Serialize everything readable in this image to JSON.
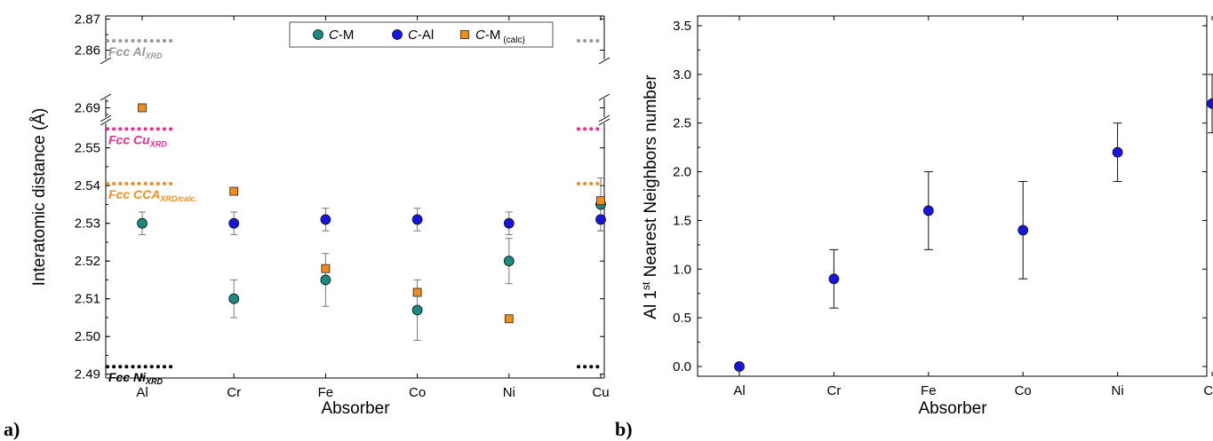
{
  "panel_a_label": "a)",
  "panel_b_label": "b)",
  "chart_data": [
    {
      "type": "scatter",
      "xlabel": "Absorber",
      "ylabel": "Interatomic distance (Å)",
      "categories": [
        "Al",
        "Cr",
        "Fe",
        "Co",
        "Ni",
        "Cu"
      ],
      "y_segments": [
        {
          "range": [
            2.489,
            2.5565
          ],
          "ticks": [
            "2.49",
            "2.50",
            "2.51",
            "2.52",
            "2.53",
            "2.54",
            "2.55"
          ]
        },
        {
          "range": [
            2.683,
            2.697
          ],
          "ticks": [
            "2.69"
          ]
        },
        {
          "range": [
            2.857,
            2.871
          ],
          "ticks": [
            "2.86",
            "2.87"
          ]
        }
      ],
      "legend": {
        "items": [
          {
            "prefix": "C",
            "suffix": "-M",
            "sub": "",
            "marker": "circle",
            "color": "#1a8a80"
          },
          {
            "prefix": "C",
            "suffix": "-Al",
            "sub": "",
            "marker": "circle",
            "color": "#1515e0"
          },
          {
            "prefix": "C",
            "suffix": "-M",
            "sub": "(calc)",
            "marker": "square",
            "color": "#f28c1c"
          }
        ]
      },
      "series": [
        {
          "name": "C-M",
          "marker": "circle",
          "color": "#1a8a80",
          "points": [
            {
              "x": "Al",
              "y": 2.53,
              "err": 0.003
            },
            {
              "x": "Cr",
              "y": 2.51,
              "err": 0.005
            },
            {
              "x": "Fe",
              "y": 2.515,
              "err": 0.007
            },
            {
              "x": "Co",
              "y": 2.507,
              "err": 0.008
            },
            {
              "x": "Ni",
              "y": 2.52,
              "err": 0.006
            },
            {
              "x": "Cu",
              "y": 2.535,
              "err": 0.007
            }
          ]
        },
        {
          "name": "C-Al",
          "marker": "circle",
          "color": "#1515e0",
          "points": [
            {
              "x": "Cr",
              "y": 2.53,
              "err": 0.003
            },
            {
              "x": "Fe",
              "y": 2.531,
              "err": 0.003
            },
            {
              "x": "Co",
              "y": 2.531,
              "err": 0.003
            },
            {
              "x": "Ni",
              "y": 2.53,
              "err": 0.003
            },
            {
              "x": "Cu",
              "y": 2.531,
              "err": 0.003
            }
          ]
        },
        {
          "name": "C-M (calc)",
          "marker": "square",
          "color": "#f28c1c",
          "points": [
            {
              "x": "Al",
              "y": 2.69
            },
            {
              "x": "Cr",
              "y": 2.5385
            },
            {
              "x": "Fe",
              "y": 2.518
            },
            {
              "x": "Co",
              "y": 2.5117
            },
            {
              "x": "Ni",
              "y": 2.5047
            },
            {
              "x": "Cu",
              "y": 2.536
            }
          ]
        }
      ],
      "reference_lines": [
        {
          "label": "Fcc Al",
          "sub": "XRD",
          "y": 2.863,
          "color": "#999999"
        },
        {
          "label": "Fcc Cu",
          "sub": "XRD",
          "y": 2.555,
          "color": "#ee2a8c"
        },
        {
          "label": "Fcc CCA",
          "sub": "XRD/calc.",
          "y": 2.5405,
          "color": "#f28c1c"
        },
        {
          "label": "Fcc Ni",
          "sub": "XRD",
          "y": 2.492,
          "color": "#000000"
        }
      ]
    },
    {
      "type": "scatter",
      "xlabel": "Absorber",
      "ylabel_parts": {
        "pre": "Al 1",
        "sup": "st",
        "post": " Nearest Neighbors number"
      },
      "categories": [
        "Al",
        "Cr",
        "Fe",
        "Co",
        "Ni",
        "Cu"
      ],
      "ylim": [
        -0.1,
        3.6
      ],
      "yticks": [
        "0.0",
        "0.5",
        "1.0",
        "1.5",
        "2.0",
        "2.5",
        "3.0",
        "3.5"
      ],
      "series": [
        {
          "marker": "circle",
          "color": "#1515e0",
          "points": [
            {
              "x": "Al",
              "y": 0.0,
              "err": 0
            },
            {
              "x": "Cr",
              "y": 0.9,
              "err": 0.3
            },
            {
              "x": "Fe",
              "y": 1.6,
              "err": 0.4
            },
            {
              "x": "Co",
              "y": 1.4,
              "err": 0.5
            },
            {
              "x": "Ni",
              "y": 2.2,
              "err": 0.3
            },
            {
              "x": "Cu",
              "y": 2.7,
              "err": 0.3
            }
          ]
        }
      ]
    }
  ]
}
